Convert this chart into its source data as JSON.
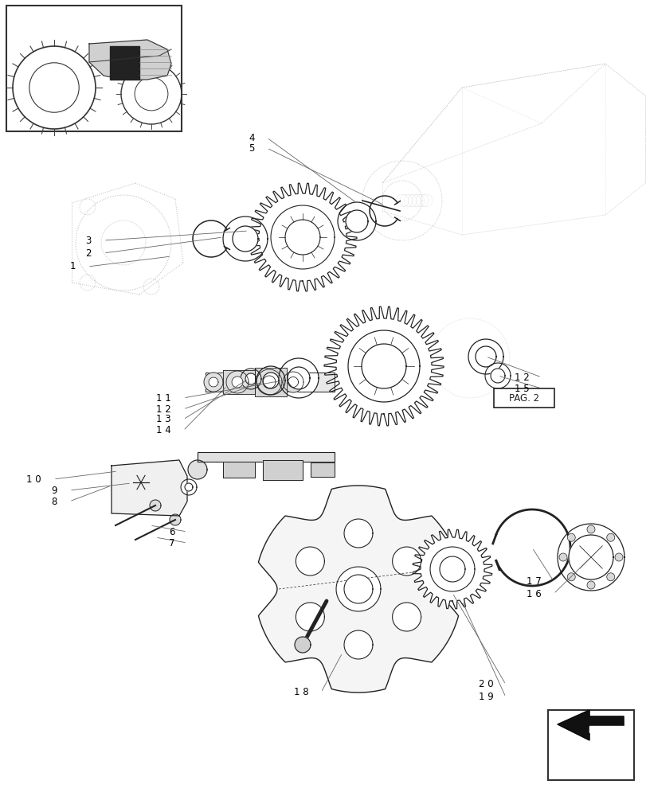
{
  "bg_color": "#ffffff",
  "line_color": "#222222",
  "light_line": "#aaaaaa",
  "dot_line": "#cccccc",
  "label_color": "#000000",
  "fig_w": 8.12,
  "fig_h": 10.0,
  "dpi": 100
}
